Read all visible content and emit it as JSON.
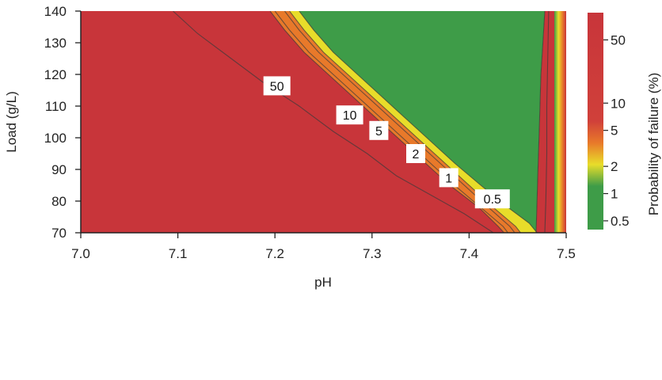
{
  "chart_data": {
    "type": "contour",
    "title": "",
    "xlabel": "pH",
    "ylabel": "Load (g/L)",
    "xlim": [
      7.0,
      7.5
    ],
    "ylim": [
      70,
      140
    ],
    "x_ticks": [
      "7.0",
      "7.1",
      "7.2",
      "7.3",
      "7.4",
      "7.5"
    ],
    "y_ticks": [
      "70",
      "80",
      "90",
      "100",
      "110",
      "120",
      "130",
      "140"
    ],
    "colorbar": {
      "label": "Probability of failure (%)",
      "scale": "log",
      "ticks": [
        "0.5",
        "1",
        "2",
        "5",
        "10",
        "50"
      ],
      "colors": {
        "high": "#c8353a",
        "mid_high": "#e8792a",
        "mid": "#e8dd2a",
        "low": "#3e9c48"
      }
    },
    "contours": [
      {
        "level": "50",
        "points": [
          [
            7.095,
            140
          ],
          [
            7.12,
            133
          ],
          [
            7.155,
            125
          ],
          [
            7.19,
            117
          ],
          [
            7.225,
            110
          ],
          [
            7.26,
            102
          ],
          [
            7.295,
            95
          ],
          [
            7.325,
            88
          ],
          [
            7.36,
            82
          ],
          [
            7.395,
            76
          ],
          [
            7.425,
            70
          ]
        ]
      },
      {
        "level": "10",
        "points": [
          [
            7.195,
            140
          ],
          [
            7.21,
            134
          ],
          [
            7.23,
            127
          ],
          [
            7.255,
            120
          ],
          [
            7.28,
            113
          ],
          [
            7.305,
            106
          ],
          [
            7.33,
            99
          ],
          [
            7.355,
            92
          ],
          [
            7.38,
            85
          ],
          [
            7.41,
            78
          ],
          [
            7.43,
            72
          ],
          [
            7.436,
            70
          ]
        ]
      },
      {
        "level": "5",
        "points": [
          [
            7.2,
            140
          ],
          [
            7.215,
            134
          ],
          [
            7.235,
            127
          ],
          [
            7.26,
            120
          ],
          [
            7.285,
            113
          ],
          [
            7.31,
            106
          ],
          [
            7.335,
            99
          ],
          [
            7.36,
            92
          ],
          [
            7.385,
            85
          ],
          [
            7.412,
            78
          ],
          [
            7.435,
            72
          ],
          [
            7.44,
            70
          ]
        ]
      },
      {
        "level": "2",
        "points": [
          [
            7.21,
            140
          ],
          [
            7.225,
            134
          ],
          [
            7.245,
            127
          ],
          [
            7.27,
            120
          ],
          [
            7.295,
            113
          ],
          [
            7.32,
            106
          ],
          [
            7.345,
            99
          ],
          [
            7.37,
            92
          ],
          [
            7.395,
            85
          ],
          [
            7.42,
            78
          ],
          [
            7.442,
            72
          ],
          [
            7.447,
            70
          ]
        ]
      },
      {
        "level": "1",
        "points": [
          [
            7.215,
            140
          ],
          [
            7.23,
            134
          ],
          [
            7.25,
            127
          ],
          [
            7.275,
            120
          ],
          [
            7.3,
            113
          ],
          [
            7.325,
            106
          ],
          [
            7.35,
            99
          ],
          [
            7.375,
            92
          ],
          [
            7.4,
            85
          ],
          [
            7.425,
            78
          ],
          [
            7.448,
            72
          ],
          [
            7.453,
            70
          ]
        ]
      },
      {
        "level": "0.5",
        "points": [
          [
            7.225,
            140
          ],
          [
            7.24,
            134
          ],
          [
            7.26,
            127
          ],
          [
            7.285,
            120
          ],
          [
            7.31,
            113
          ],
          [
            7.335,
            106
          ],
          [
            7.36,
            99
          ],
          [
            7.385,
            92
          ],
          [
            7.412,
            85
          ],
          [
            7.44,
            78
          ],
          [
            7.462,
            73
          ],
          [
            7.47,
            70
          ]
        ]
      },
      {
        "level": "0.5",
        "points": [
          [
            7.478,
            140
          ],
          [
            7.476,
            130
          ],
          [
            7.474,
            120
          ],
          [
            7.473,
            110
          ],
          [
            7.472,
            100
          ],
          [
            7.471,
            90
          ],
          [
            7.47,
            80
          ],
          [
            7.469,
            70
          ]
        ]
      },
      {
        "level": "1",
        "points": [
          [
            7.482,
            140
          ],
          [
            7.481,
            125
          ],
          [
            7.48,
            110
          ],
          [
            7.48,
            95
          ],
          [
            7.479,
            80
          ],
          [
            7.478,
            70
          ]
        ]
      }
    ],
    "contour_labels": [
      {
        "text": "50",
        "x": 7.202,
        "y": 116.4
      },
      {
        "text": "10",
        "x": 7.277,
        "y": 107.2
      },
      {
        "text": "5",
        "x": 7.307,
        "y": 102.3
      },
      {
        "text": "2",
        "x": 7.345,
        "y": 95.0
      },
      {
        "text": "1",
        "x": 7.379,
        "y": 87.4
      },
      {
        "text": "0.5",
        "x": 7.424,
        "y": 80.7
      }
    ]
  }
}
